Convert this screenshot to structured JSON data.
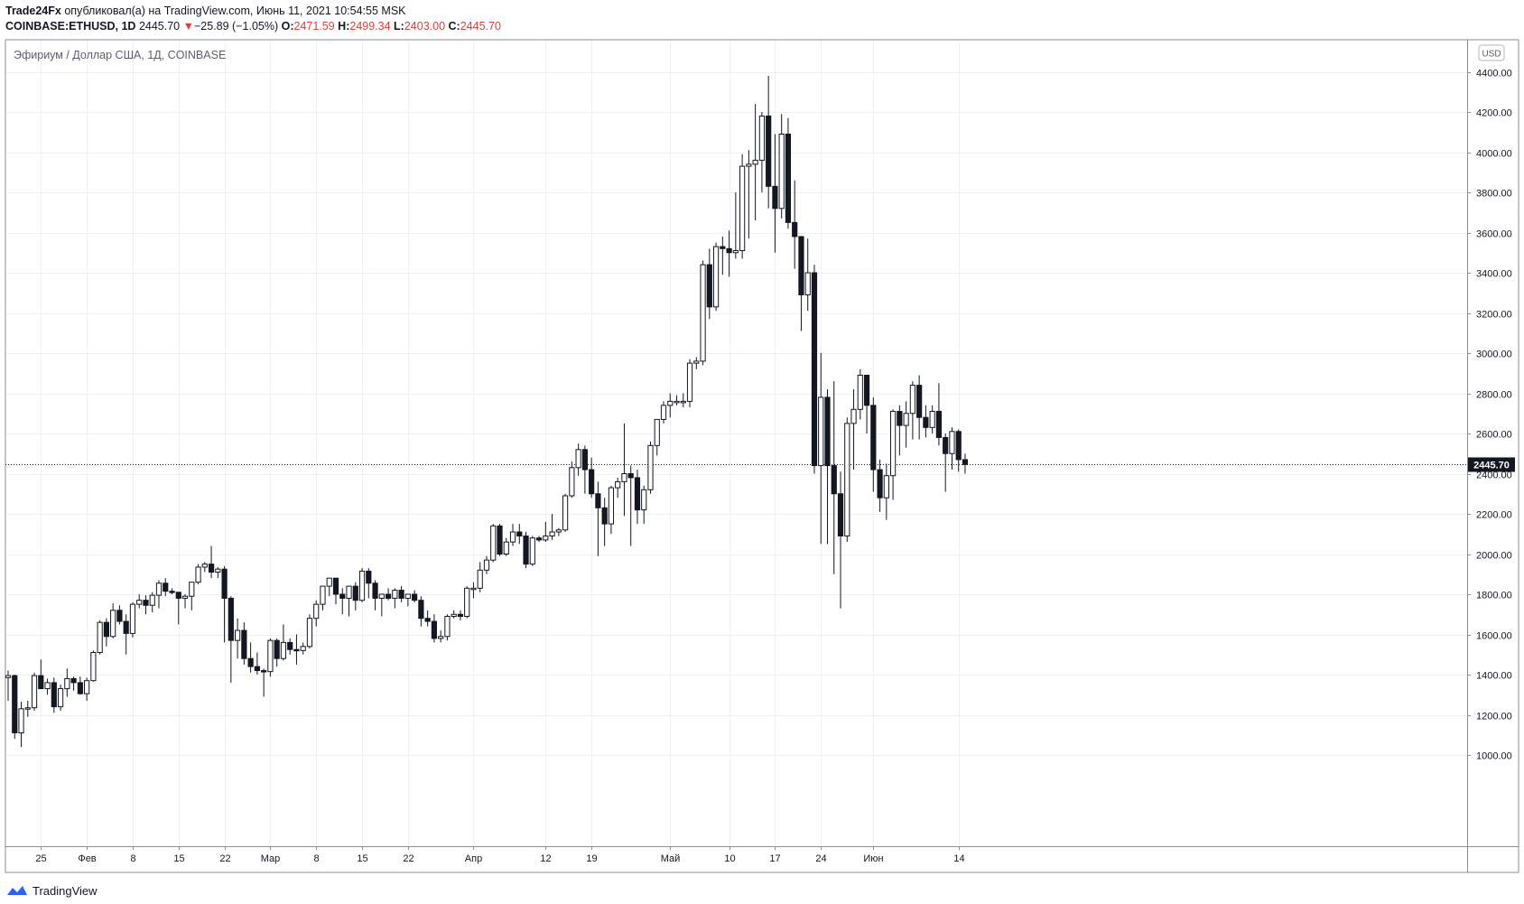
{
  "header": {
    "author": "Trade24Fx",
    "published_text": "опубликовал(а) на TradingView.com, Июнь 11, 2021 10:54:55 MSK",
    "symbol": "COINBASE:ETHUSD, 1D",
    "last": "2445.70",
    "change_arrow": "▼",
    "change": "−25.89 (−1.05%)",
    "o_label": "O:",
    "o_value": "2471.59",
    "h_label": "H:",
    "h_value": "2499.34",
    "l_label": "L:",
    "l_value": "2403.00",
    "c_label": "C:",
    "c_value": "2445.70"
  },
  "footer": {
    "brand": "TradingView"
  },
  "chart_data": {
    "type": "candlestick",
    "title": "Эфириум / Доллар США, 1Д, COINBASE",
    "currency_label": "USD",
    "last_price_label": "2445.70",
    "last_price": 2445.7,
    "grid": true,
    "ylim": [
      870,
      4500
    ],
    "y_ticks": [
      1000,
      1200,
      1400,
      1600,
      1800,
      2000,
      2200,
      2400,
      2600,
      2800,
      3000,
      3200,
      3400,
      3600,
      3800,
      4000,
      4200,
      4400
    ],
    "y_tick_labels": [
      "1000.00",
      "1200.00",
      "1400.00",
      "1600.00",
      "1800.00",
      "2000.00",
      "2200.00",
      "2400.00",
      "2600.00",
      "2800.00",
      "3000.00",
      "3200.00",
      "3400.00",
      "3600.00",
      "3800.00",
      "4000.00",
      "4200.00",
      "4400.00"
    ],
    "x_ticks": [
      {
        "label": "25",
        "index": 5
      },
      {
        "label": "Фев",
        "index": 12
      },
      {
        "label": "8",
        "index": 19
      },
      {
        "label": "15",
        "index": 26
      },
      {
        "label": "22",
        "index": 33
      },
      {
        "label": "Мар",
        "index": 40
      },
      {
        "label": "8",
        "index": 47
      },
      {
        "label": "15",
        "index": 54
      },
      {
        "label": "22",
        "index": 61
      },
      {
        "label": "Апр",
        "index": 71
      },
      {
        "label": "12",
        "index": 82
      },
      {
        "label": "19",
        "index": 89
      },
      {
        "label": "Май",
        "index": 101
      },
      {
        "label": "10",
        "index": 110
      },
      {
        "label": "17",
        "index": 117
      },
      {
        "label": "24",
        "index": 124
      },
      {
        "label": "Июн",
        "index": 132
      },
      {
        "label": "14",
        "index": 145
      }
    ],
    "candles": [
      {
        "o": 1385,
        "h": 1420,
        "l": 1270,
        "c": 1395
      },
      {
        "o": 1395,
        "h": 1400,
        "l": 1080,
        "c": 1110
      },
      {
        "o": 1110,
        "h": 1265,
        "l": 1040,
        "c": 1230
      },
      {
        "o": 1230,
        "h": 1270,
        "l": 1190,
        "c": 1235
      },
      {
        "o": 1235,
        "h": 1410,
        "l": 1220,
        "c": 1395
      },
      {
        "o": 1395,
        "h": 1475,
        "l": 1330,
        "c": 1330
      },
      {
        "o": 1330,
        "h": 1380,
        "l": 1300,
        "c": 1360
      },
      {
        "o": 1360,
        "h": 1385,
        "l": 1210,
        "c": 1240
      },
      {
        "o": 1240,
        "h": 1350,
        "l": 1220,
        "c": 1330
      },
      {
        "o": 1330,
        "h": 1430,
        "l": 1290,
        "c": 1380
      },
      {
        "o": 1380,
        "h": 1390,
        "l": 1320,
        "c": 1360
      },
      {
        "o": 1360,
        "h": 1390,
        "l": 1300,
        "c": 1305
      },
      {
        "o": 1305,
        "h": 1385,
        "l": 1270,
        "c": 1370
      },
      {
        "o": 1370,
        "h": 1520,
        "l": 1365,
        "c": 1510
      },
      {
        "o": 1510,
        "h": 1670,
        "l": 1500,
        "c": 1660
      },
      {
        "o": 1660,
        "h": 1680,
        "l": 1540,
        "c": 1590
      },
      {
        "o": 1590,
        "h": 1755,
        "l": 1580,
        "c": 1720
      },
      {
        "o": 1720,
        "h": 1745,
        "l": 1650,
        "c": 1665
      },
      {
        "o": 1665,
        "h": 1700,
        "l": 1500,
        "c": 1605
      },
      {
        "o": 1605,
        "h": 1760,
        "l": 1585,
        "c": 1750
      },
      {
        "o": 1750,
        "h": 1800,
        "l": 1730,
        "c": 1770
      },
      {
        "o": 1770,
        "h": 1795,
        "l": 1700,
        "c": 1745
      },
      {
        "o": 1745,
        "h": 1810,
        "l": 1710,
        "c": 1795
      },
      {
        "o": 1795,
        "h": 1870,
        "l": 1730,
        "c": 1855
      },
      {
        "o": 1855,
        "h": 1880,
        "l": 1790,
        "c": 1815
      },
      {
        "o": 1815,
        "h": 1830,
        "l": 1800,
        "c": 1810
      },
      {
        "o": 1810,
        "h": 1810,
        "l": 1650,
        "c": 1780
      },
      {
        "o": 1780,
        "h": 1800,
        "l": 1730,
        "c": 1790
      },
      {
        "o": 1790,
        "h": 1860,
        "l": 1720,
        "c": 1860
      },
      {
        "o": 1860,
        "h": 1950,
        "l": 1850,
        "c": 1935
      },
      {
        "o": 1935,
        "h": 1960,
        "l": 1910,
        "c": 1950
      },
      {
        "o": 1950,
        "h": 2040,
        "l": 1880,
        "c": 1910
      },
      {
        "o": 1910,
        "h": 1935,
        "l": 1880,
        "c": 1925
      },
      {
        "o": 1925,
        "h": 1940,
        "l": 1560,
        "c": 1780
      },
      {
        "o": 1780,
        "h": 1790,
        "l": 1360,
        "c": 1570
      },
      {
        "o": 1570,
        "h": 1680,
        "l": 1480,
        "c": 1620
      },
      {
        "o": 1620,
        "h": 1660,
        "l": 1450,
        "c": 1480
      },
      {
        "o": 1480,
        "h": 1560,
        "l": 1410,
        "c": 1440
      },
      {
        "o": 1440,
        "h": 1510,
        "l": 1400,
        "c": 1420
      },
      {
        "o": 1420,
        "h": 1430,
        "l": 1290,
        "c": 1415
      },
      {
        "o": 1415,
        "h": 1580,
        "l": 1390,
        "c": 1570
      },
      {
        "o": 1570,
        "h": 1580,
        "l": 1440,
        "c": 1480
      },
      {
        "o": 1480,
        "h": 1650,
        "l": 1470,
        "c": 1560
      },
      {
        "o": 1560,
        "h": 1580,
        "l": 1500,
        "c": 1525
      },
      {
        "o": 1525,
        "h": 1600,
        "l": 1450,
        "c": 1520
      },
      {
        "o": 1520,
        "h": 1560,
        "l": 1500,
        "c": 1540
      },
      {
        "o": 1540,
        "h": 1700,
        "l": 1530,
        "c": 1680
      },
      {
        "o": 1680,
        "h": 1770,
        "l": 1640,
        "c": 1750
      },
      {
        "o": 1750,
        "h": 1840,
        "l": 1720,
        "c": 1840
      },
      {
        "o": 1840,
        "h": 1870,
        "l": 1790,
        "c": 1880
      },
      {
        "o": 1880,
        "h": 1880,
        "l": 1750,
        "c": 1800
      },
      {
        "o": 1800,
        "h": 1830,
        "l": 1700,
        "c": 1780
      },
      {
        "o": 1780,
        "h": 1830,
        "l": 1690,
        "c": 1840
      },
      {
        "o": 1840,
        "h": 1860,
        "l": 1720,
        "c": 1770
      },
      {
        "o": 1770,
        "h": 1930,
        "l": 1760,
        "c": 1915
      },
      {
        "o": 1915,
        "h": 1930,
        "l": 1780,
        "c": 1855
      },
      {
        "o": 1855,
        "h": 1870,
        "l": 1720,
        "c": 1780
      },
      {
        "o": 1780,
        "h": 1800,
        "l": 1690,
        "c": 1800
      },
      {
        "o": 1800,
        "h": 1830,
        "l": 1770,
        "c": 1780
      },
      {
        "o": 1780,
        "h": 1830,
        "l": 1730,
        "c": 1820
      },
      {
        "o": 1820,
        "h": 1840,
        "l": 1760,
        "c": 1780
      },
      {
        "o": 1780,
        "h": 1800,
        "l": 1740,
        "c": 1800
      },
      {
        "o": 1800,
        "h": 1820,
        "l": 1760,
        "c": 1770
      },
      {
        "o": 1770,
        "h": 1790,
        "l": 1640,
        "c": 1680
      },
      {
        "o": 1680,
        "h": 1720,
        "l": 1640,
        "c": 1665
      },
      {
        "o": 1665,
        "h": 1700,
        "l": 1560,
        "c": 1580
      },
      {
        "o": 1580,
        "h": 1620,
        "l": 1560,
        "c": 1590
      },
      {
        "o": 1590,
        "h": 1700,
        "l": 1570,
        "c": 1690
      },
      {
        "o": 1690,
        "h": 1720,
        "l": 1680,
        "c": 1700
      },
      {
        "o": 1700,
        "h": 1720,
        "l": 1670,
        "c": 1690
      },
      {
        "o": 1690,
        "h": 1840,
        "l": 1680,
        "c": 1830
      },
      {
        "o": 1830,
        "h": 1860,
        "l": 1780,
        "c": 1830
      },
      {
        "o": 1830,
        "h": 1960,
        "l": 1810,
        "c": 1920
      },
      {
        "o": 1920,
        "h": 1990,
        "l": 1900,
        "c": 1970
      },
      {
        "o": 1970,
        "h": 2150,
        "l": 1960,
        "c": 2140
      },
      {
        "o": 2140,
        "h": 2150,
        "l": 1990,
        "c": 2000
      },
      {
        "o": 2000,
        "h": 2080,
        "l": 1990,
        "c": 2060
      },
      {
        "o": 2060,
        "h": 2150,
        "l": 2040,
        "c": 2110
      },
      {
        "o": 2110,
        "h": 2150,
        "l": 2050,
        "c": 2090
      },
      {
        "o": 2090,
        "h": 2110,
        "l": 1930,
        "c": 1950
      },
      {
        "o": 1950,
        "h": 2090,
        "l": 1940,
        "c": 2080
      },
      {
        "o": 2080,
        "h": 2090,
        "l": 2060,
        "c": 2070
      },
      {
        "o": 2070,
        "h": 2160,
        "l": 2060,
        "c": 2090
      },
      {
        "o": 2090,
        "h": 2200,
        "l": 2070,
        "c": 2110
      },
      {
        "o": 2110,
        "h": 2130,
        "l": 2090,
        "c": 2120
      },
      {
        "o": 2120,
        "h": 2300,
        "l": 2110,
        "c": 2290
      },
      {
        "o": 2290,
        "h": 2460,
        "l": 2280,
        "c": 2430
      },
      {
        "o": 2430,
        "h": 2550,
        "l": 2390,
        "c": 2520
      },
      {
        "o": 2520,
        "h": 2540,
        "l": 2300,
        "c": 2420
      },
      {
        "o": 2420,
        "h": 2480,
        "l": 2280,
        "c": 2300
      },
      {
        "o": 2300,
        "h": 2360,
        "l": 1990,
        "c": 2230
      },
      {
        "o": 2230,
        "h": 2280,
        "l": 2040,
        "c": 2150
      },
      {
        "o": 2150,
        "h": 2340,
        "l": 2100,
        "c": 2330
      },
      {
        "o": 2330,
        "h": 2380,
        "l": 2280,
        "c": 2360
      },
      {
        "o": 2360,
        "h": 2650,
        "l": 2190,
        "c": 2400
      },
      {
        "o": 2400,
        "h": 2440,
        "l": 2040,
        "c": 2380
      },
      {
        "o": 2380,
        "h": 2420,
        "l": 2150,
        "c": 2220
      },
      {
        "o": 2220,
        "h": 2340,
        "l": 2150,
        "c": 2320
      },
      {
        "o": 2320,
        "h": 2560,
        "l": 2300,
        "c": 2540
      },
      {
        "o": 2540,
        "h": 2660,
        "l": 2490,
        "c": 2670
      },
      {
        "o": 2670,
        "h": 2760,
        "l": 2650,
        "c": 2740
      },
      {
        "o": 2740,
        "h": 2800,
        "l": 2680,
        "c": 2760
      },
      {
        "o": 2760,
        "h": 2790,
        "l": 2740,
        "c": 2760
      },
      {
        "o": 2760,
        "h": 2800,
        "l": 2730,
        "c": 2760
      },
      {
        "o": 2760,
        "h": 2970,
        "l": 2730,
        "c": 2950
      },
      {
        "o": 2950,
        "h": 2980,
        "l": 2920,
        "c": 2960
      },
      {
        "o": 2960,
        "h": 3460,
        "l": 2940,
        "c": 3440
      },
      {
        "o": 3440,
        "h": 3520,
        "l": 3170,
        "c": 3230
      },
      {
        "o": 3230,
        "h": 3550,
        "l": 3210,
        "c": 3530
      },
      {
        "o": 3530,
        "h": 3580,
        "l": 3390,
        "c": 3520
      },
      {
        "o": 3520,
        "h": 3610,
        "l": 3380,
        "c": 3500
      },
      {
        "o": 3500,
        "h": 3800,
        "l": 3470,
        "c": 3510
      },
      {
        "o": 3510,
        "h": 3990,
        "l": 3470,
        "c": 3930
      },
      {
        "o": 3930,
        "h": 4010,
        "l": 3570,
        "c": 3940
      },
      {
        "o": 3940,
        "h": 4240,
        "l": 3660,
        "c": 3960
      },
      {
        "o": 3960,
        "h": 4200,
        "l": 3800,
        "c": 4180
      },
      {
        "o": 4180,
        "h": 4380,
        "l": 3720,
        "c": 3830
      },
      {
        "o": 3830,
        "h": 4090,
        "l": 3500,
        "c": 3720
      },
      {
        "o": 3720,
        "h": 4190,
        "l": 3670,
        "c": 4090
      },
      {
        "o": 4090,
        "h": 4170,
        "l": 3620,
        "c": 3650
      },
      {
        "o": 3650,
        "h": 3860,
        "l": 3420,
        "c": 3580
      },
      {
        "o": 3580,
        "h": 3580,
        "l": 3110,
        "c": 3290
      },
      {
        "o": 3290,
        "h": 3570,
        "l": 3210,
        "c": 3400
      },
      {
        "o": 3400,
        "h": 3440,
        "l": 2400,
        "c": 2440
      },
      {
        "o": 2440,
        "h": 3000,
        "l": 2050,
        "c": 2780
      },
      {
        "o": 2780,
        "h": 2820,
        "l": 2050,
        "c": 2440
      },
      {
        "o": 2440,
        "h": 2860,
        "l": 1900,
        "c": 2300
      },
      {
        "o": 2300,
        "h": 2410,
        "l": 1730,
        "c": 2090
      },
      {
        "o": 2090,
        "h": 2680,
        "l": 2060,
        "c": 2650
      },
      {
        "o": 2650,
        "h": 2820,
        "l": 2420,
        "c": 2720
      },
      {
        "o": 2720,
        "h": 2920,
        "l": 2670,
        "c": 2890
      },
      {
        "o": 2890,
        "h": 2880,
        "l": 2600,
        "c": 2740
      },
      {
        "o": 2740,
        "h": 2780,
        "l": 2310,
        "c": 2420
      },
      {
        "o": 2420,
        "h": 2470,
        "l": 2210,
        "c": 2280
      },
      {
        "o": 2280,
        "h": 2450,
        "l": 2170,
        "c": 2390
      },
      {
        "o": 2390,
        "h": 2720,
        "l": 2270,
        "c": 2710
      },
      {
        "o": 2710,
        "h": 2740,
        "l": 2490,
        "c": 2640
      },
      {
        "o": 2640,
        "h": 2760,
        "l": 2530,
        "c": 2700
      },
      {
        "o": 2700,
        "h": 2860,
        "l": 2570,
        "c": 2840
      },
      {
        "o": 2840,
        "h": 2890,
        "l": 2570,
        "c": 2680
      },
      {
        "o": 2680,
        "h": 2740,
        "l": 2580,
        "c": 2630
      },
      {
        "o": 2630,
        "h": 2740,
        "l": 2600,
        "c": 2710
      },
      {
        "o": 2710,
        "h": 2850,
        "l": 2540,
        "c": 2580
      },
      {
        "o": 2580,
        "h": 2600,
        "l": 2310,
        "c": 2500
      },
      {
        "o": 2500,
        "h": 2630,
        "l": 2420,
        "c": 2610
      },
      {
        "o": 2610,
        "h": 2620,
        "l": 2410,
        "c": 2470
      },
      {
        "o": 2470,
        "h": 2500,
        "l": 2400,
        "c": 2445.7
      }
    ]
  }
}
